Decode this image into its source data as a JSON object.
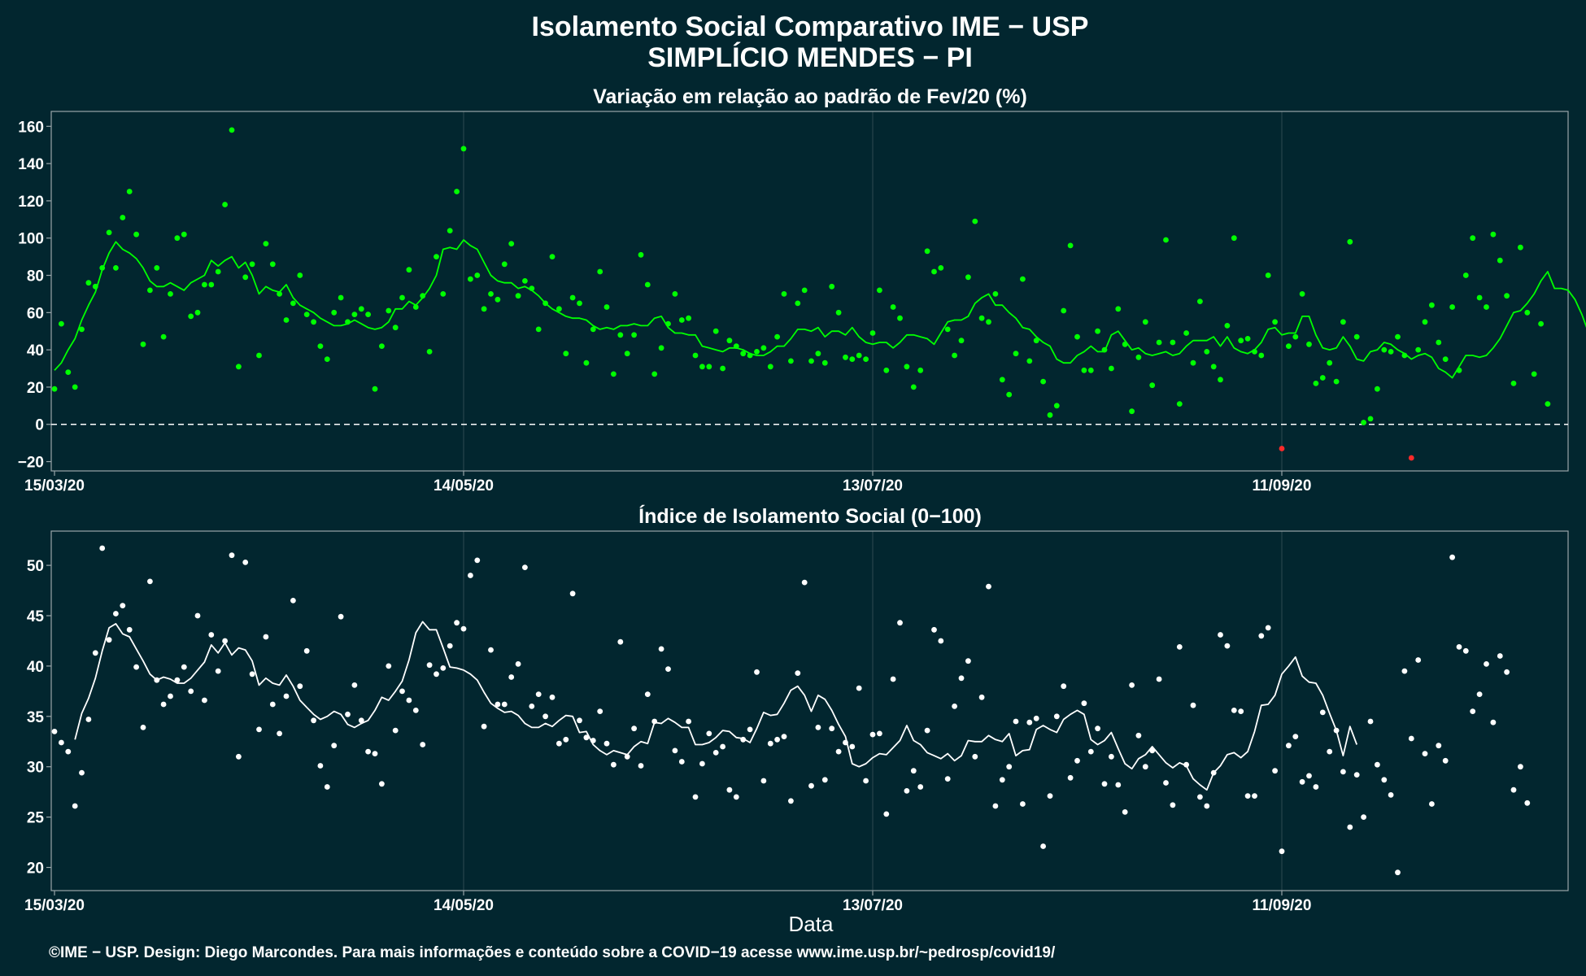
{
  "title_line1": "Isolamento Social Comparativo IME − USP",
  "title_line2": "SIMPLÍCIO MENDES − PI",
  "xlabel": "Data",
  "footer": "©IME − USP. Design: Diego Marcondes. Para mais informações e conteúdo sobre a COVID−19 acesse www.ime.usp.br/~pedrosp/covid19/",
  "colors": {
    "background": "#02262f",
    "points_top": "#00ff00",
    "points_negative": "#ff2a2a",
    "line_top": "#00ff00",
    "points_bottom": "#ffffff",
    "line_bottom": "#ffffff"
  },
  "chart_data": [
    {
      "type": "scatter",
      "title": "Variação em relação ao padrão de Fev/20 (%)",
      "xlabel": "Data",
      "x_start": "15/03/20",
      "x_ticks": [
        {
          "label": "15/03/20",
          "day": 0
        },
        {
          "label": "14/05/20",
          "day": 60
        },
        {
          "label": "13/07/20",
          "day": 120
        },
        {
          "label": "11/09/20",
          "day": 180
        }
      ],
      "ylim": [
        -25,
        168
      ],
      "yticks": [
        -20,
        0,
        20,
        40,
        60,
        80,
        100,
        120,
        140,
        160
      ],
      "reference_line": 0,
      "series": [
        {
          "kind": "points",
          "values": [
            19,
            54,
            28,
            20,
            51,
            76,
            74,
            84,
            103,
            84,
            111,
            125,
            102,
            43,
            72,
            84,
            47,
            70,
            100,
            102,
            58,
            60,
            75,
            75,
            82,
            118,
            158,
            31,
            79,
            86,
            37,
            97,
            86,
            70,
            56,
            65,
            80,
            59,
            55,
            42,
            35,
            60,
            68,
            55,
            59,
            62,
            59,
            19,
            42,
            61,
            52,
            68,
            83,
            63,
            69,
            39,
            90,
            70,
            104,
            125,
            148,
            78,
            80,
            62,
            70,
            67,
            86,
            97,
            69,
            77,
            73,
            51,
            65,
            90,
            62,
            38,
            68,
            65,
            33,
            51,
            82,
            63,
            27,
            48,
            38,
            48,
            91,
            75,
            27,
            41,
            54,
            70,
            56,
            57,
            37,
            31,
            31,
            50,
            30,
            45,
            42,
            38,
            37,
            39,
            41,
            31,
            47,
            70,
            34,
            65,
            72,
            34,
            38,
            33,
            74,
            60,
            36,
            35,
            37,
            35,
            49,
            72,
            29,
            63,
            57,
            31,
            20,
            29,
            93,
            82,
            84,
            51,
            37,
            45,
            79,
            109,
            57,
            55,
            70,
            24,
            16,
            38,
            78,
            34,
            45,
            23,
            5,
            10,
            61,
            96,
            47,
            29,
            29,
            50,
            40,
            30,
            62,
            43,
            7,
            36,
            55,
            21,
            44,
            99,
            44,
            11,
            49,
            33,
            66,
            39,
            31,
            24,
            53,
            100,
            45,
            46,
            39,
            37,
            80,
            55,
            -13,
            42,
            47,
            70,
            43,
            22,
            25,
            33,
            23,
            55,
            98,
            47,
            1,
            3,
            19,
            40,
            39,
            47,
            37,
            -18,
            40,
            55,
            64,
            44,
            35,
            63,
            29,
            80,
            100,
            68,
            63,
            102,
            88,
            69,
            22,
            95,
            60,
            27,
            54,
            11
          ]
        },
        {
          "kind": "line",
          "start_day": 0,
          "values": [
            29,
            33,
            40,
            46,
            56,
            64,
            71,
            83,
            92,
            98,
            94,
            92,
            89,
            84,
            77,
            74,
            74,
            76,
            74,
            72,
            76,
            78,
            80,
            88,
            85,
            88,
            90,
            84,
            87,
            80,
            70,
            74,
            72,
            71,
            75,
            68,
            64,
            62,
            60,
            57,
            55,
            53,
            53,
            54,
            56,
            54,
            52,
            51,
            52,
            55,
            62,
            62,
            66,
            64,
            68,
            73,
            80,
            94,
            95,
            94,
            99,
            96,
            94,
            87,
            80,
            77,
            76,
            76,
            73,
            74,
            72,
            69,
            65,
            62,
            60,
            58,
            57,
            57,
            56,
            53,
            51,
            52,
            51,
            53,
            53,
            54,
            53,
            53,
            57,
            58,
            52,
            49,
            49,
            48,
            48,
            42,
            41,
            40,
            39,
            41,
            41,
            40,
            38,
            37,
            37,
            39,
            42,
            42,
            46,
            51,
            51,
            50,
            52,
            47,
            50,
            50,
            48,
            52,
            47,
            44,
            43,
            44,
            44,
            41,
            44,
            48,
            48,
            47,
            46,
            43,
            49,
            55,
            56,
            56,
            58,
            65,
            68,
            70,
            64,
            64,
            60,
            57,
            52,
            51,
            47,
            44,
            42,
            35,
            33,
            33,
            37,
            39,
            42,
            39,
            39,
            48,
            50,
            45,
            40,
            41,
            38,
            37,
            38,
            39,
            37,
            38,
            42,
            45,
            45,
            45,
            47,
            42,
            47,
            41,
            39,
            38,
            40,
            44,
            51,
            52,
            48,
            49,
            49,
            58,
            58,
            48,
            41,
            40,
            41,
            47,
            42,
            35,
            34,
            39,
            40,
            44,
            43,
            40,
            38,
            35,
            37,
            38,
            36,
            30,
            28,
            25,
            31,
            37,
            37,
            36,
            37,
            41,
            46,
            53,
            60,
            61,
            65,
            70,
            77,
            82,
            73,
            73,
            72,
            67,
            59,
            49
          ]
        }
      ]
    },
    {
      "type": "scatter",
      "title": "Índice de Isolamento Social (0−100)",
      "xlabel": "Data",
      "x_start": "15/03/20",
      "x_ticks": [
        {
          "label": "15/03/20",
          "day": 0
        },
        {
          "label": "14/05/20",
          "day": 60
        },
        {
          "label": "13/07/20",
          "day": 120
        },
        {
          "label": "11/09/20",
          "day": 180
        }
      ],
      "ylim": [
        17.7,
        53.4
      ],
      "yticks": [
        20,
        25,
        30,
        35,
        40,
        45,
        50
      ],
      "series": [
        {
          "kind": "points",
          "values": [
            33.5,
            32.4,
            31.5,
            26.1,
            29.4,
            34.7,
            41.3,
            51.7,
            42.6,
            45.2,
            46.0,
            43.6,
            39.9,
            33.9,
            48.4,
            38.6,
            36.2,
            37.0,
            38.6,
            39.9,
            37.5,
            45.0,
            36.6,
            43.1,
            39.5,
            42.5,
            51.0,
            31.0,
            50.3,
            39.2,
            33.7,
            42.9,
            36.2,
            33.3,
            37.0,
            46.5,
            38.0,
            41.5,
            34.6,
            30.1,
            28.0,
            32.1,
            44.9,
            35.2,
            38.1,
            34.6,
            31.5,
            31.3,
            28.3,
            40.0,
            33.6,
            37.5,
            36.6,
            35.6,
            32.2,
            40.1,
            39.2,
            39.8,
            42.0,
            44.3,
            43.7,
            49.0,
            50.5,
            34.0,
            41.6,
            36.2,
            36.2,
            38.9,
            40.2,
            49.8,
            36.0,
            37.2,
            35.0,
            36.9,
            32.3,
            32.7,
            47.2,
            34.6,
            32.9,
            32.6,
            35.5,
            32.3,
            30.2,
            42.4,
            31.0,
            33.8,
            30.1,
            37.2,
            34.5,
            41.7,
            39.7,
            31.6,
            30.5,
            34.5,
            27.0,
            30.3,
            33.3,
            31.4,
            32.0,
            27.7,
            27.0,
            32.7,
            33.7,
            39.4,
            28.6,
            32.3,
            32.7,
            33.0,
            26.6,
            39.3,
            48.3,
            28.1,
            33.9,
            28.7,
            33.8,
            31.5,
            32.4,
            32.0,
            37.8,
            28.6,
            33.2,
            33.3,
            25.3,
            38.7,
            44.3,
            27.6,
            29.6,
            28.0,
            33.6,
            43.6,
            42.5,
            28.8,
            36.0,
            38.8,
            40.5,
            31.0,
            36.9,
            47.9,
            26.1,
            28.7,
            30.0,
            34.5,
            26.3,
            34.4,
            34.8,
            22.1,
            27.1,
            35.0,
            38.0,
            28.9,
            30.6,
            36.3,
            31.5,
            33.8,
            28.3,
            31.0,
            28.2,
            25.5,
            38.1,
            33.1,
            30.0,
            31.6,
            38.7,
            28.4,
            26.2,
            41.9,
            30.2,
            36.1,
            27.0,
            26.1,
            29.4,
            43.1,
            42.0,
            35.6,
            35.5,
            27.1,
            27.1,
            43.0,
            43.8,
            29.6,
            21.6,
            32.1,
            33.0,
            28.5,
            29.1,
            28.0,
            35.4,
            31.5,
            33.6,
            29.5,
            24.0,
            29.2,
            25.0,
            34.5,
            30.2,
            28.7,
            27.2,
            19.5,
            39.5,
            32.8,
            40.6,
            31.3,
            26.3,
            32.1,
            30.6,
            50.8,
            41.9,
            41.5,
            35.5,
            37.2,
            40.2,
            34.4,
            41.0,
            39.4,
            27.7,
            30.0,
            26.4
          ]
        },
        {
          "kind": "line",
          "start_day": 3,
          "values": [
            32.7,
            35.3,
            36.8,
            38.8,
            41.5,
            43.8,
            44.2,
            43.2,
            42.9,
            41.7,
            40.5,
            39.2,
            38.6,
            38.9,
            38.7,
            38.3,
            38.3,
            38.8,
            39.6,
            40.4,
            42.1,
            41.3,
            42.3,
            41.1,
            41.8,
            41.6,
            40.5,
            38.1,
            38.8,
            38.3,
            38.1,
            39.1,
            38.0,
            36.6,
            35.9,
            35.2,
            34.7,
            35.0,
            35.5,
            35.2,
            34.2,
            33.9,
            34.3,
            34.6,
            35.6,
            36.9,
            36.6,
            37.5,
            38.5,
            40.6,
            43.3,
            44.4,
            43.6,
            43.6,
            41.8,
            39.9,
            39.8,
            39.6,
            39.2,
            38.6,
            37.4,
            36.3,
            35.8,
            35.4,
            35.5,
            35.1,
            34.3,
            33.9,
            33.9,
            34.3,
            34.0,
            34.6,
            35.1,
            35.0,
            33.4,
            33.5,
            32.2,
            31.6,
            31.2,
            31.6,
            31.4,
            31.2,
            32.0,
            32.5,
            32.3,
            34.4,
            34.3,
            34.8,
            34.4,
            33.9,
            33.9,
            32.2,
            32.2,
            32.4,
            32.9,
            33.6,
            33.5,
            32.9,
            32.8,
            32.4,
            33.8,
            35.4,
            35.1,
            35.2,
            36.3,
            37.6,
            38.0,
            37.1,
            35.5,
            37.1,
            36.7,
            35.6,
            34.2,
            33.0,
            30.3,
            30.0,
            30.3,
            30.9,
            31.3,
            31.2,
            31.9,
            32.6,
            34.1,
            32.6,
            32.2,
            31.4,
            31.1,
            30.8,
            31.3,
            30.6,
            31.1,
            32.6,
            32.5,
            32.5,
            33.1,
            32.7,
            32.5,
            33.3,
            31.1,
            31.6,
            31.7,
            33.7,
            34.1,
            33.7,
            33.4,
            34.7,
            35.2,
            35.6,
            35.2,
            32.7,
            32.2,
            32.6,
            33.4,
            31.8,
            30.3,
            29.8,
            30.8,
            31.2,
            32.0,
            31.2,
            30.4,
            29.9,
            30.4,
            30.1,
            28.8,
            28.2,
            27.7,
            29.4,
            30.1,
            31.2,
            31.4,
            30.9,
            31.5,
            33.5,
            36.1,
            36.2,
            37.1,
            39.2,
            40.0,
            40.9,
            39.0,
            38.4,
            38.3,
            37.1,
            35.3,
            33.6,
            31.1,
            34.0,
            32.2
          ]
        }
      ]
    }
  ]
}
